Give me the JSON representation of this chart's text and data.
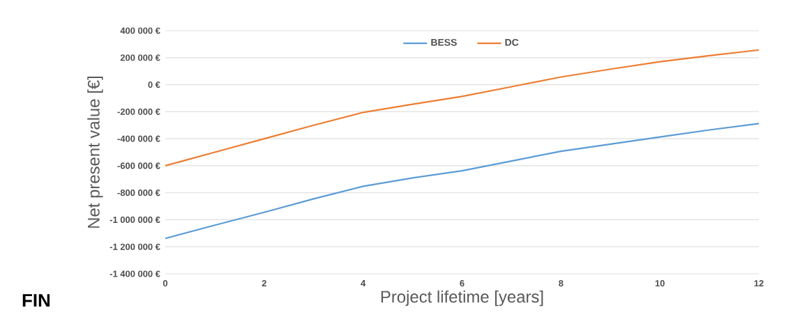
{
  "chart_data": {
    "type": "line",
    "xlabel": "Project lifetime [years]",
    "ylabel": "Net present value [€]",
    "annotations": [
      "FIN"
    ],
    "x": [
      0,
      1,
      2,
      3,
      4,
      5,
      6,
      7,
      8,
      9,
      10,
      11,
      12
    ],
    "series": [
      {
        "name": "BESS",
        "color": "#5b9bd5",
        "values": [
          -1138000,
          -1040000,
          -945000,
          -845000,
          -752000,
          -690000,
          -637000,
          -565000,
          -493000,
          -440000,
          -387000,
          -335000,
          -288000
        ]
      },
      {
        "name": "DC",
        "color": "#ed7d31",
        "values": [
          -600000,
          -500000,
          -400000,
          -300000,
          -205000,
          -145000,
          -87000,
          -15000,
          57000,
          115000,
          170000,
          215000,
          257000
        ]
      }
    ],
    "xlim": [
      0,
      12
    ],
    "xticks": [
      0,
      2,
      4,
      6,
      8,
      10,
      12
    ],
    "ylim": [
      -1400000,
      400000
    ],
    "yticks": [
      {
        "value": -1400000,
        "label": "-1 400 000 €"
      },
      {
        "value": -1200000,
        "label": "-1 200 000 €"
      },
      {
        "value": -1000000,
        "label": "-1 000 000 €"
      },
      {
        "value": -800000,
        "label": "-800 000 €"
      },
      {
        "value": -600000,
        "label": "-600 000 €"
      },
      {
        "value": -400000,
        "label": "-400 000 €"
      },
      {
        "value": -200000,
        "label": "-200 000 €"
      },
      {
        "value": 0,
        "label": "0 €"
      },
      {
        "value": 200000,
        "label": "200 000 €"
      },
      {
        "value": 400000,
        "label": "400 000 €"
      }
    ],
    "grid": "y",
    "legend": "top",
    "marker": "none",
    "line_style": "solid"
  }
}
